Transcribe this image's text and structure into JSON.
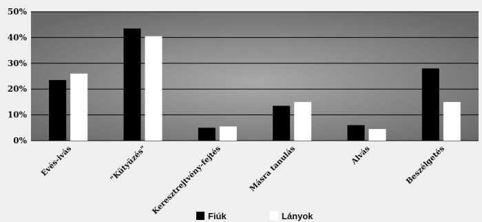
{
  "chart_data": {
    "type": "bar",
    "categories": [
      "Evés-ivás",
      "\"Kütyüzés\"",
      "Keresztrejtvény-fejtés",
      "Másra tanulás",
      "Alvás",
      "Beszélgetés"
    ],
    "series": [
      {
        "name": "Fiúk",
        "color": "#000000",
        "values": [
          23.5,
          43.5,
          5.0,
          13.5,
          6.0,
          28.0
        ]
      },
      {
        "name": "Lányok",
        "color": "#ffffff",
        "values": [
          26.0,
          40.5,
          5.5,
          15.0,
          4.5,
          15.0
        ]
      }
    ],
    "ylim": [
      0,
      50
    ],
    "yticks": [
      0,
      10,
      20,
      30,
      40,
      50
    ],
    "ytick_labels": [
      "0%",
      "10%",
      "20%",
      "30%",
      "40%",
      "50%"
    ],
    "grid": true,
    "legend_position": "bottom",
    "colors": {
      "plot_background": "#808080",
      "page_background": "#efefef"
    }
  }
}
